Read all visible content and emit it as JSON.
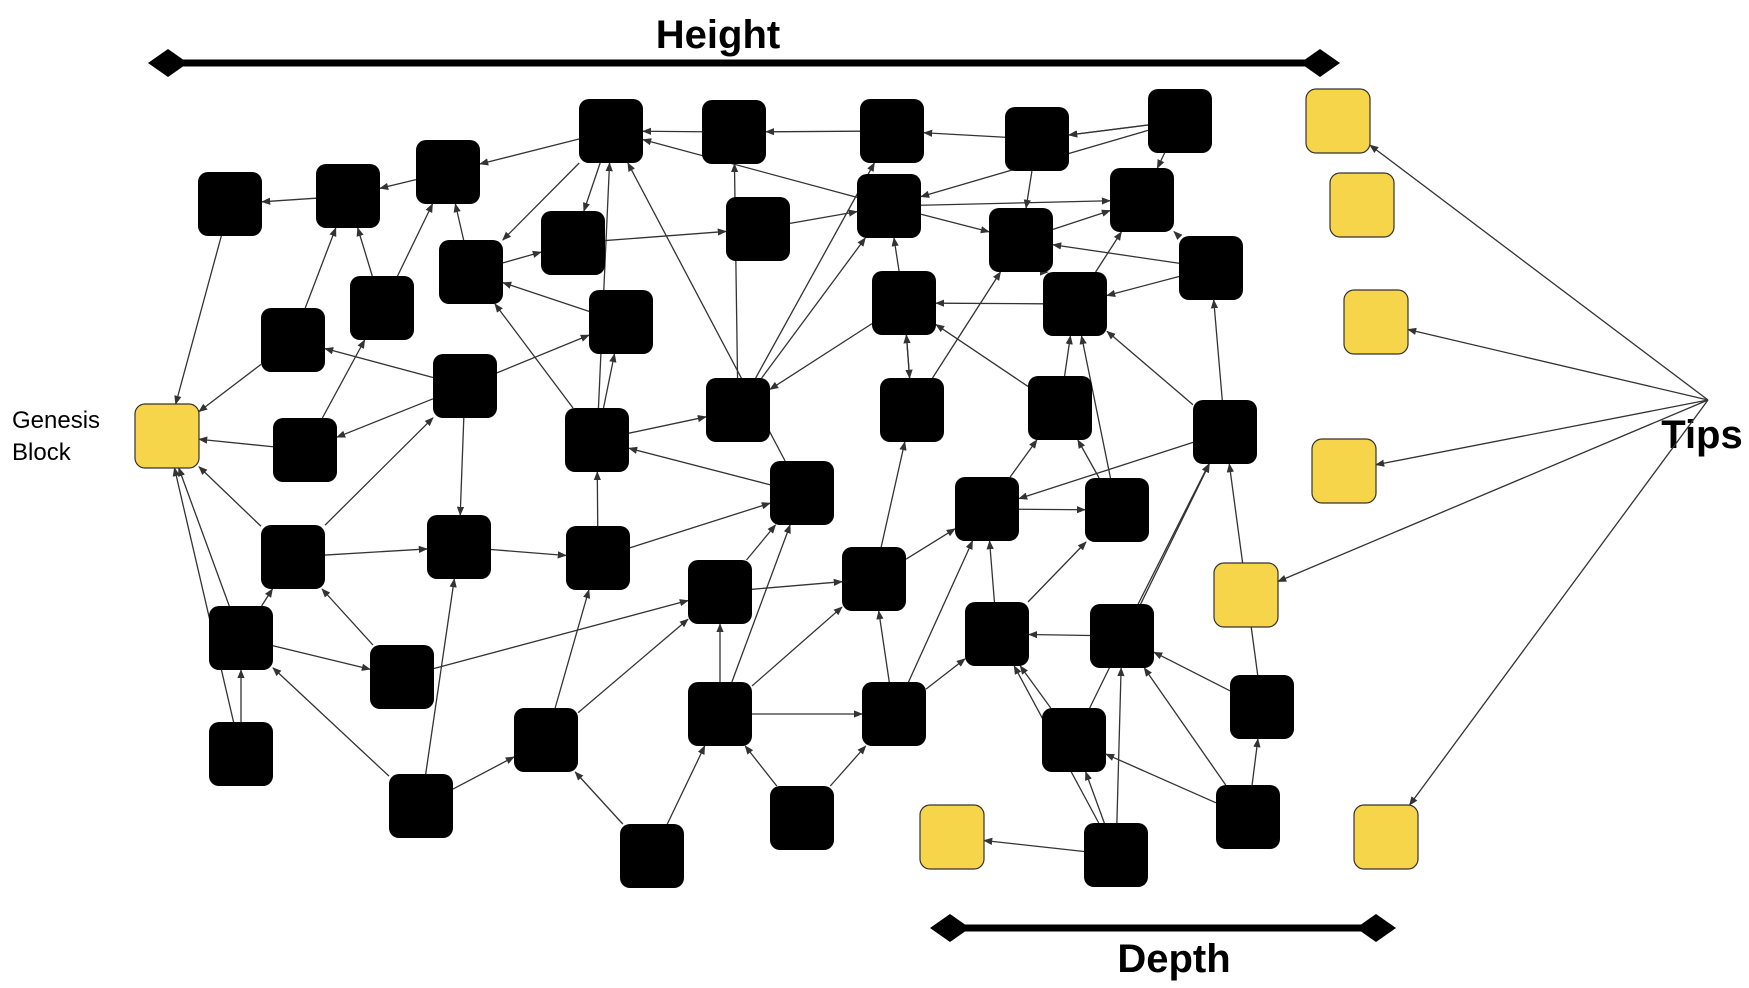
{
  "labels": {
    "height": "Height",
    "depth": "Depth",
    "tips": "Tips",
    "genesis_line1": "Genesis",
    "genesis_line2": "Block"
  },
  "colors": {
    "block": "#000000",
    "genesis": "#F7D54A",
    "tip": "#F7D54A",
    "edge": "#333333"
  }
}
